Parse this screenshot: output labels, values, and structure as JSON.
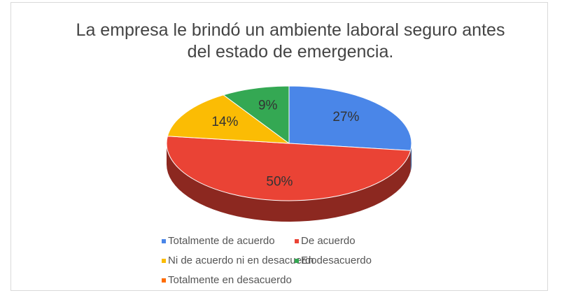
{
  "chart_data": {
    "type": "pie3d",
    "title": "La empresa le brindó un ambiente laboral seguro antes del estado de emergencia.",
    "categories": [
      "Totalmente de acuerdo",
      "De acuerdo",
      "Ni de acuerdo ni en desacuerdo",
      "En desacuerdo",
      "Totalmente en desacuerdo"
    ],
    "values": [
      27,
      50,
      14,
      9,
      0
    ],
    "value_labels": [
      "27%",
      "50%",
      "14%",
      "9%",
      null
    ],
    "colors": [
      "#4a86e8",
      "#ea4335",
      "#fbbc04",
      "#34a853",
      "#ff6d01"
    ]
  }
}
